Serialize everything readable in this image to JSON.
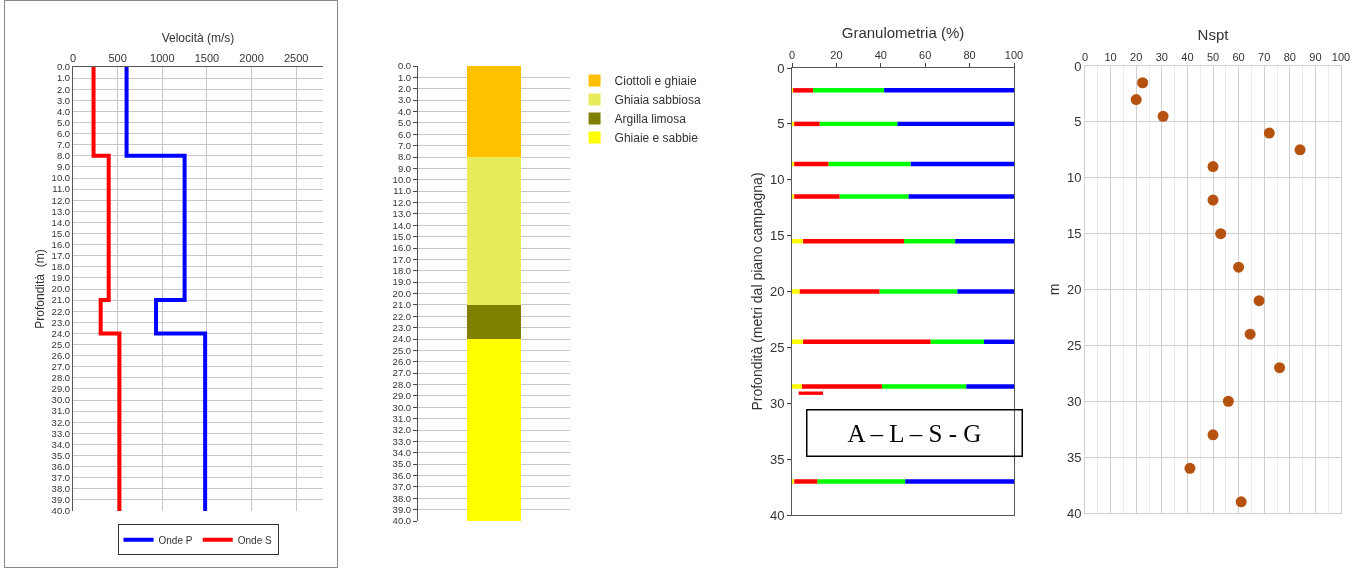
{
  "chart_data": [
    {
      "type": "line",
      "xlabel": "Velocità (m/s)",
      "ylabel": "Profondità  (m)",
      "series": [
        {
          "name": "Onde P",
          "color": "#0000ff",
          "x": [
            600,
            600,
            1250,
            1250,
            930,
            930,
            1480,
            1480
          ],
          "values": [
            0,
            8,
            8,
            21,
            21,
            24,
            24,
            40
          ]
        },
        {
          "name": "Onde S",
          "color": "#ff0000",
          "x": [
            230,
            230,
            400,
            400,
            310,
            310,
            520,
            520
          ],
          "values": [
            0,
            8,
            8,
            21,
            21,
            24,
            24,
            40
          ]
        }
      ],
      "xlim": [
        0,
        2800
      ],
      "xticks": [
        0,
        500,
        1000,
        1500,
        2000,
        2500
      ],
      "ylim": [
        40,
        0
      ],
      "yticks": [
        {
          "value": 0,
          "label": "0.0"
        },
        {
          "value": 1,
          "label": "1.0"
        },
        {
          "value": 2,
          "label": "2.0"
        },
        {
          "value": 3,
          "label": "3.0"
        },
        {
          "value": 4,
          "label": "4.0"
        },
        {
          "value": 5,
          "label": "5.0"
        },
        {
          "value": 6,
          "label": "6.0"
        },
        {
          "value": 7,
          "label": "7.0"
        },
        {
          "value": 8,
          "label": "8.0"
        },
        {
          "value": 9,
          "label": "9.0"
        },
        {
          "value": 10,
          "label": "10.0"
        },
        {
          "value": 11,
          "label": "11.0"
        },
        {
          "value": 12,
          "label": "12.0"
        },
        {
          "value": 13,
          "label": "13.0"
        },
        {
          "value": 14,
          "label": "14.0"
        },
        {
          "value": 15,
          "label": "15.0"
        },
        {
          "value": 16,
          "label": "16.0"
        },
        {
          "value": 17,
          "label": "17.0"
        },
        {
          "value": 18,
          "label": "18.0"
        },
        {
          "value": 19,
          "label": "19.0"
        },
        {
          "value": 20,
          "label": "20.0"
        },
        {
          "value": 21,
          "label": "21.0"
        },
        {
          "value": 22,
          "label": "22.0"
        },
        {
          "value": 23,
          "label": "23.0"
        },
        {
          "value": 24,
          "label": "24.0"
        },
        {
          "value": 25,
          "label": "25.0"
        },
        {
          "value": 26,
          "label": "26.0"
        },
        {
          "value": 27,
          "label": "27.0"
        },
        {
          "value": 28,
          "label": "28.0"
        },
        {
          "value": 29,
          "label": "29.0"
        },
        {
          "value": 30,
          "label": "30.0"
        },
        {
          "value": 31,
          "label": "31.0"
        },
        {
          "value": 32,
          "label": "32.0"
        },
        {
          "value": 33,
          "label": "33.0"
        },
        {
          "value": 34,
          "label": "34.0"
        },
        {
          "value": 35,
          "label": "35.0"
        },
        {
          "value": 36,
          "label": "36.0"
        },
        {
          "value": 37,
          "label": "37.0"
        },
        {
          "value": 38,
          "label": "38.0"
        },
        {
          "value": 39,
          "label": "39.0"
        },
        {
          "value": 40,
          "label": "40.0"
        }
      ],
      "grid": true,
      "legend": "bottom"
    },
    {
      "type": "bar",
      "stacked": true,
      "categories": [
        null
      ],
      "series": [
        {
          "name": "Ciottoli e ghiaie",
          "color": "#ffc000",
          "values": [
            8
          ]
        },
        {
          "name": "Ghiaia sabbiosa",
          "color": "#e8eb5c",
          "values": [
            13
          ]
        },
        {
          "name": "Argilla limosa",
          "color": "#808000",
          "values": [
            3
          ]
        },
        {
          "name": "Ghiaie e sabbie",
          "color": "#ffff00",
          "values": [
            16
          ]
        }
      ],
      "ylim": [
        40,
        0
      ],
      "yticks": [
        {
          "value": 0,
          "label": "0.0"
        },
        {
          "value": 1,
          "label": "1.0"
        },
        {
          "value": 2,
          "label": "2.0"
        },
        {
          "value": 3,
          "label": "3.0"
        },
        {
          "value": 4,
          "label": "4.0"
        },
        {
          "value": 5,
          "label": "5.0"
        },
        {
          "value": 6,
          "label": "6.0"
        },
        {
          "value": 7,
          "label": "7.0"
        },
        {
          "value": 8,
          "label": "8.0"
        },
        {
          "value": 9,
          "label": "9.0"
        },
        {
          "value": 10,
          "label": "10.0"
        },
        {
          "value": 11,
          "label": "11.0"
        },
        {
          "value": 12,
          "label": "12.0"
        },
        {
          "value": 13,
          "label": "13.0"
        },
        {
          "value": 14,
          "label": "14.0"
        },
        {
          "value": 15,
          "label": "15.0"
        },
        {
          "value": 16,
          "label": "16.0"
        },
        {
          "value": 17,
          "label": "17.0"
        },
        {
          "value": 18,
          "label": "18.0"
        },
        {
          "value": 19,
          "label": "19.0"
        },
        {
          "value": 20,
          "label": "20.0"
        },
        {
          "value": 21,
          "label": "21.0"
        },
        {
          "value": 22,
          "label": "22.0"
        },
        {
          "value": 23,
          "label": "23.0"
        },
        {
          "value": 24,
          "label": "24.0"
        },
        {
          "value": 25,
          "label": "25.0"
        },
        {
          "value": 26,
          "label": "26.0"
        },
        {
          "value": 27,
          "label": "27.0"
        },
        {
          "value": 28,
          "label": "28.0"
        },
        {
          "value": 29,
          "label": "29.0"
        },
        {
          "value": 30,
          "label": "30.0"
        },
        {
          "value": 31,
          "label": "31.0"
        },
        {
          "value": 32,
          "label": "32.0"
        },
        {
          "value": 33,
          "label": "33.0"
        },
        {
          "value": 34,
          "label": "34.0"
        },
        {
          "value": 35,
          "label": "35.0"
        },
        {
          "value": 36,
          "label": "36.0"
        },
        {
          "value": 37,
          "label": "37.0"
        },
        {
          "value": 38,
          "label": "38.0"
        },
        {
          "value": 39,
          "label": "39.0"
        },
        {
          "value": 40,
          "label": "40.0"
        }
      ],
      "grid": "y",
      "legend": "right",
      "tick_labels": "y"
    },
    {
      "type": "bar",
      "orientation": "horizontal",
      "xlabel": "Granulometria (%)",
      "ylabel": "Profondità (metri dal piano campagna)",
      "x": [
        2,
        5,
        8.6,
        11.5,
        15.5,
        20,
        24.5,
        28.5,
        37
      ],
      "series": [
        {
          "color": "#ffff00",
          "base": [
            0,
            0,
            0,
            0,
            0,
            0,
            0,
            0,
            0
          ],
          "values": [
            0.5,
            1,
            1,
            1,
            5,
            3.5,
            5,
            4.5,
            1
          ]
        },
        {
          "color": "#ff0000",
          "base": [
            0.5,
            1,
            1,
            1,
            5,
            3.5,
            5,
            4.5,
            1
          ],
          "values": [
            9,
            11.5,
            15.5,
            20.5,
            45.5,
            36,
            57.5,
            36,
            10.5
          ]
        },
        {
          "color": "#00ff00",
          "base": [
            9.5,
            12.5,
            16.5,
            21.5,
            50.5,
            39.5,
            62.5,
            40.5,
            11.5
          ],
          "values": [
            32,
            35,
            37,
            31,
            23,
            35,
            24,
            38,
            39.5
          ]
        },
        {
          "color": "#0000ff",
          "base": [
            41.5,
            47.5,
            53.5,
            52.5,
            73.5,
            74.5,
            86.5,
            78.5,
            51
          ],
          "values": [
            58.5,
            52.5,
            46.5,
            47.5,
            26.5,
            25.5,
            13.5,
            21.5,
            49
          ]
        },
        {
          "color": "#ff0000",
          "x": [
            29.1
          ],
          "base": [
            3
          ],
          "values": [
            11
          ]
        }
      ],
      "xlim": [
        0,
        100
      ],
      "xticks": [
        0,
        20,
        40,
        60,
        80,
        100
      ],
      "ylim": [
        40,
        0
      ],
      "yticks": [
        0,
        5,
        10,
        15,
        20,
        25,
        30,
        35,
        40
      ],
      "annotations": [
        "A – L – S - G"
      ]
    },
    {
      "type": "scatter",
      "xlabel": "Nspt",
      "ylabel": "m",
      "color": "#b5520f",
      "marker": "circle",
      "x": [
        22.5,
        20,
        30.5,
        72,
        84,
        50,
        50,
        53,
        60,
        68,
        64.5,
        76,
        56,
        50,
        41,
        61
      ],
      "values": [
        1.5,
        3,
        4.5,
        6,
        7.5,
        9,
        12,
        15,
        18,
        21,
        24,
        27,
        30,
        33,
        36,
        39
      ],
      "xlim": [
        0,
        100
      ],
      "xticks": [
        0,
        10,
        20,
        30,
        40,
        50,
        60,
        70,
        80,
        90,
        100
      ],
      "ylim": [
        40,
        0
      ],
      "yticks": [
        0,
        5,
        10,
        15,
        20,
        25,
        30,
        35,
        40
      ],
      "grid": true
    }
  ]
}
